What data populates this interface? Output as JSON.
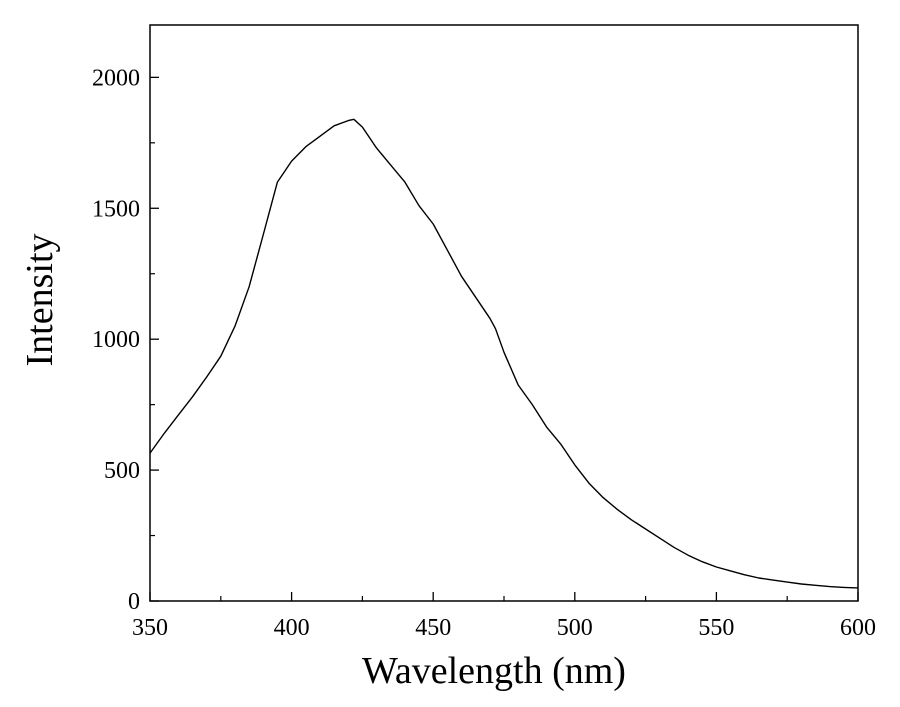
{
  "chart_data": {
    "type": "line",
    "title": "",
    "xlabel": "Wavelength (nm)",
    "ylabel": "Intensity",
    "xlim": [
      350,
      600
    ],
    "ylim": [
      0,
      2200
    ],
    "xticks": [
      350,
      400,
      450,
      500,
      550,
      600
    ],
    "yticks": [
      0,
      500,
      1000,
      1500,
      2000
    ],
    "x_tick_labels": [
      "350",
      "400",
      "450",
      "500",
      "550",
      "600"
    ],
    "y_tick_labels": [
      "0",
      "500",
      "1000",
      "1500",
      "2000"
    ],
    "grid": false,
    "legend": "none",
    "series": [
      {
        "color": "#000000",
        "x": [
          350,
          355,
          360,
          365,
          370,
          375,
          380,
          385,
          390,
          395,
          400,
          405,
          410,
          415,
          420,
          422,
          425,
          430,
          435,
          440,
          445,
          450,
          455,
          460,
          465,
          470,
          472,
          475,
          480,
          485,
          490,
          495,
          500,
          505,
          510,
          515,
          520,
          525,
          530,
          535,
          540,
          545,
          550,
          555,
          560,
          565,
          570,
          575,
          580,
          585,
          590,
          595,
          600
        ],
        "y": [
          565,
          640,
          710,
          780,
          855,
          935,
          1050,
          1200,
          1400,
          1600,
          1680,
          1735,
          1775,
          1815,
          1835,
          1840,
          1810,
          1730,
          1665,
          1600,
          1510,
          1440,
          1340,
          1240,
          1160,
          1080,
          1040,
          950,
          825,
          750,
          665,
          600,
          520,
          450,
          395,
          350,
          310,
          275,
          240,
          205,
          175,
          150,
          130,
          115,
          100,
          88,
          80,
          72,
          65,
          60,
          55,
          52,
          50
        ]
      }
    ]
  }
}
